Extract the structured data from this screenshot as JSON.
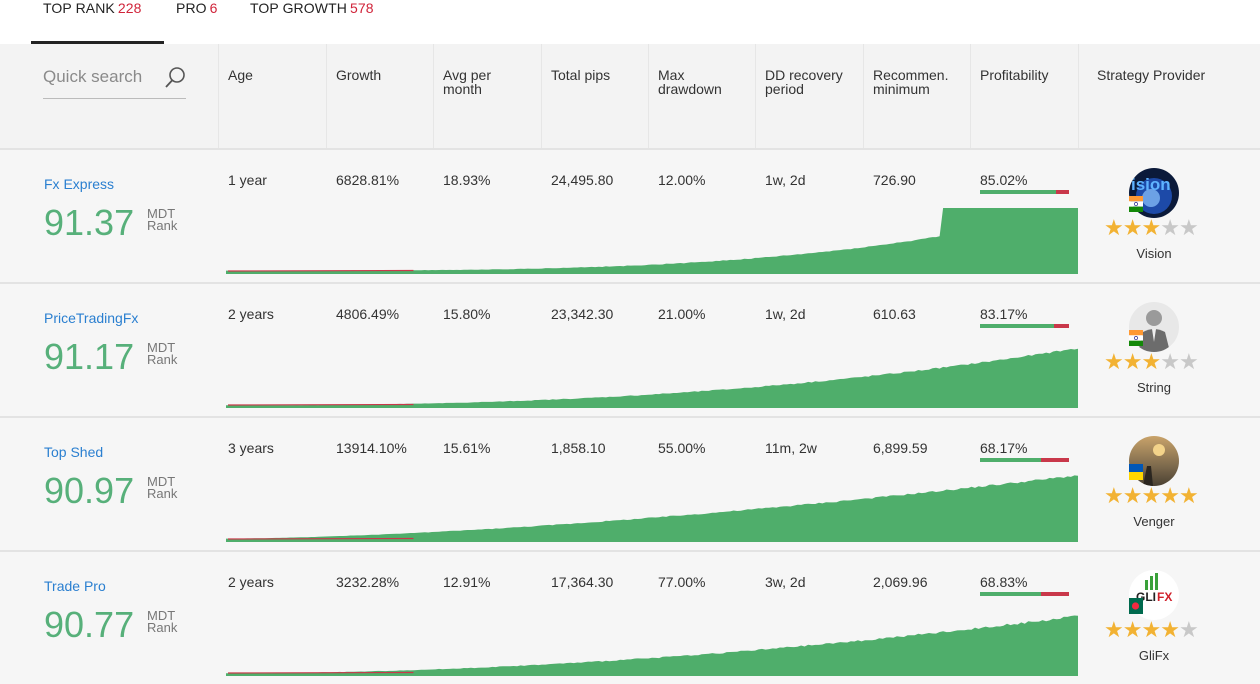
{
  "tabs": [
    {
      "label": "TOP RANK",
      "count": "228"
    },
    {
      "label": "PRO",
      "count": "6"
    },
    {
      "label": "TOP GROWTH",
      "count": "578"
    }
  ],
  "search": {
    "placeholder": "Quick search"
  },
  "columns": {
    "age": "Age",
    "growth": "Growth",
    "avg_line1": "Avg per",
    "avg_line2": "month",
    "pips": "Total pips",
    "dd_line1": "Max",
    "dd_line2": "drawdown",
    "rec_line1": "DD recovery",
    "rec_line2": "period",
    "min_line1": "Recommen.",
    "min_line2": "minimum",
    "profit": "Profitability",
    "provider": "Strategy Provider"
  },
  "rank_unit_line1": "MDT",
  "rank_unit_line2": "Rank",
  "rows": [
    {
      "name": "Fx Express",
      "rank": "91.37",
      "age": "1 year",
      "growth": "6828.81%",
      "avg": "18.93%",
      "pips": "24,495.80",
      "dd": "12.00%",
      "recovery": "1w, 2d",
      "minimum": "726.90",
      "profit": "85.02%",
      "profit_fraction": 0.85,
      "provider": "Vision",
      "stars": 3,
      "flag": "india"
    },
    {
      "name": "PriceTradingFx",
      "rank": "91.17",
      "age": "2 years",
      "growth": "4806.49%",
      "avg": "15.80%",
      "pips": "23,342.30",
      "dd": "21.00%",
      "recovery": "1w, 2d",
      "minimum": "610.63",
      "profit": "83.17%",
      "profit_fraction": 0.83,
      "provider": "String",
      "stars": 3,
      "flag": "india"
    },
    {
      "name": "Top Shed",
      "rank": "90.97",
      "age": "3 years",
      "growth": "13914.10%",
      "avg": "15.61%",
      "pips": "1,858.10",
      "dd": "55.00%",
      "recovery": "11m, 2w",
      "minimum": "6,899.59",
      "profit": "68.17%",
      "profit_fraction": 0.68,
      "provider": "Venger",
      "stars": 5,
      "flag": "ukraine"
    },
    {
      "name": "Trade Pro",
      "rank": "90.77",
      "age": "2 years",
      "growth": "3232.28%",
      "avg": "12.91%",
      "pips": "17,364.30",
      "dd": "77.00%",
      "recovery": "3w, 2d",
      "minimum": "2,069.96",
      "profit": "68.83%",
      "profit_fraction": 0.69,
      "provider": "GliFx",
      "stars": 4,
      "flag": "bangladesh"
    }
  ],
  "colors": {
    "accent_green": "#57b07a",
    "link_blue": "#2a7fd0",
    "count_red": "#d0243a",
    "chart_fill": "#4fae6b",
    "bar_red": "#c9384a",
    "star": "#f2b233"
  }
}
